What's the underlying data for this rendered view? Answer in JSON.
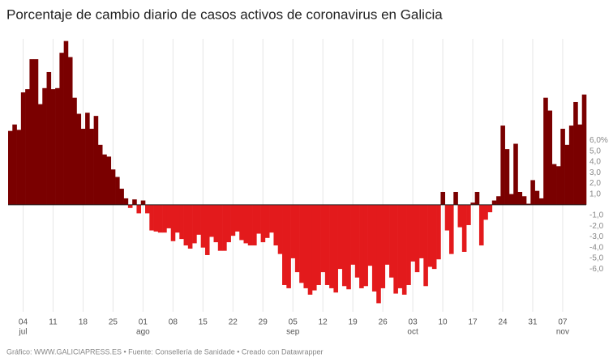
{
  "chart_data": {
    "type": "bar",
    "title": "Porcentaje de cambio diario de casos activos de coronavirus en Galicia",
    "footer": "Gráfico: WWW.GALICIAPRESS.ES • Fuente: Consellería de Sanidade • Creado con Datawrapper",
    "positive_color": "#7a0000",
    "negative_color": "#e31a1c",
    "ylim": [
      -10,
      15.5
    ],
    "yticks": [
      {
        "value": 6,
        "label": "6,0%"
      },
      {
        "value": 5,
        "label": "5,0"
      },
      {
        "value": 4,
        "label": "4,0"
      },
      {
        "value": 3,
        "label": "3,0"
      },
      {
        "value": 2,
        "label": "2,0"
      },
      {
        "value": 1,
        "label": "1,0"
      },
      {
        "value": -1,
        "label": "-1,0"
      },
      {
        "value": -2,
        "label": "-2,0"
      },
      {
        "value": -3,
        "label": "-3,0"
      },
      {
        "value": -4,
        "label": "-4,0"
      },
      {
        "value": -5,
        "label": "-5,0"
      },
      {
        "value": -6,
        "label": "-6,0"
      }
    ],
    "grid": true,
    "categories": [
      null,
      null,
      null,
      "04",
      null,
      null,
      null,
      null,
      null,
      null,
      "11",
      null,
      null,
      null,
      null,
      null,
      null,
      "18",
      null,
      null,
      null,
      null,
      null,
      null,
      "25",
      null,
      null,
      null,
      null,
      null,
      null,
      "01",
      null,
      null,
      null,
      null,
      null,
      null,
      "08",
      null,
      null,
      null,
      null,
      null,
      null,
      "15",
      null,
      null,
      null,
      null,
      null,
      null,
      "22",
      null,
      null,
      null,
      null,
      null,
      null,
      "29",
      null,
      null,
      null,
      null,
      null,
      null,
      "05",
      null,
      null,
      null,
      null,
      null,
      null,
      "12",
      null,
      null,
      null,
      null,
      null,
      null,
      "19",
      null,
      null,
      null,
      null,
      null,
      null,
      "26",
      null,
      null,
      null,
      null,
      null,
      null,
      "03",
      null,
      null,
      null,
      null,
      null,
      null,
      "10",
      null,
      null,
      null,
      null,
      null,
      null,
      "17",
      null,
      null,
      null,
      null,
      null,
      null,
      "24",
      null,
      null,
      null,
      null,
      null,
      null,
      "31",
      null,
      null,
      null,
      null,
      null,
      null,
      "07",
      null,
      null,
      null,
      null,
      null
    ],
    "month_labels": [
      null,
      null,
      null,
      "jul",
      null,
      null,
      null,
      null,
      null,
      null,
      null,
      null,
      null,
      null,
      null,
      null,
      null,
      null,
      null,
      null,
      null,
      null,
      null,
      null,
      null,
      null,
      null,
      null,
      null,
      null,
      null,
      "ago",
      null,
      null,
      null,
      null,
      null,
      null,
      null,
      null,
      null,
      null,
      null,
      null,
      null,
      null,
      null,
      null,
      null,
      null,
      null,
      null,
      null,
      null,
      null,
      null,
      null,
      null,
      null,
      null,
      null,
      null,
      null,
      null,
      null,
      null,
      "sep",
      null,
      null,
      null,
      null,
      null,
      null,
      null,
      null,
      null,
      null,
      null,
      null,
      null,
      null,
      null,
      null,
      null,
      null,
      null,
      null,
      null,
      null,
      null,
      null,
      null,
      null,
      null,
      "oct",
      null,
      null,
      null,
      null,
      null,
      null,
      null,
      null,
      null,
      null,
      null,
      null,
      null,
      null,
      null,
      null,
      null,
      null,
      null,
      null,
      null,
      null,
      null,
      null,
      null,
      null,
      null,
      null,
      null,
      null,
      null,
      null,
      null,
      null,
      "nov",
      null,
      null,
      null,
      null,
      null
    ],
    "values": [
      6.9,
      7.5,
      7.0,
      10.5,
      10.8,
      13.6,
      13.6,
      9.4,
      10.9,
      12.4,
      10.8,
      10.9,
      14.2,
      15.3,
      13.8,
      10.0,
      8.5,
      7.1,
      8.6,
      7.1,
      8.3,
      5.6,
      4.7,
      4.5,
      3.3,
      2.6,
      1.5,
      0.6,
      -0.3,
      0.5,
      -0.8,
      0.4,
      -0.8,
      -2.4,
      -2.5,
      -2.6,
      -2.6,
      -2.2,
      -3.4,
      -2.6,
      -3.2,
      -3.8,
      -4.1,
      -3.6,
      -2.8,
      -4.0,
      -4.7,
      -3.0,
      -3.5,
      -4.3,
      -4.3,
      -3.5,
      -2.9,
      -2.5,
      -3.3,
      -3.6,
      -3.8,
      -3.8,
      -2.7,
      -3.5,
      -3.1,
      -2.6,
      -3.8,
      -4.6,
      -7.5,
      -7.8,
      -5.0,
      -6.3,
      -7.3,
      -7.8,
      -8.4,
      -8.0,
      -7.5,
      -6.3,
      -7.5,
      -7.8,
      -8.2,
      -6.0,
      -7.6,
      -7.9,
      -5.6,
      -6.8,
      -7.8,
      -7.6,
      -5.7,
      -8.1,
      -9.2,
      -7.8,
      -5.6,
      -6.8,
      -8.3,
      -7.8,
      -8.4,
      -7.5,
      -5.3,
      -6.3,
      -5.0,
      -7.6,
      -5.8,
      -6.0,
      -5.1,
      1.2,
      -2.4,
      -4.6,
      1.2,
      -2.1,
      -4.4,
      -1.9,
      0.2,
      1.2,
      -3.8,
      -1.4,
      -0.7,
      0.4,
      0.8,
      7.4,
      5.2,
      1.0,
      5.7,
      1.2,
      0.8,
      0.1,
      2.3,
      1.3,
      0.6,
      10.0,
      8.8,
      3.8,
      3.6,
      7.1,
      5.6,
      7.4,
      9.6,
      7.5,
      10.3
    ]
  }
}
